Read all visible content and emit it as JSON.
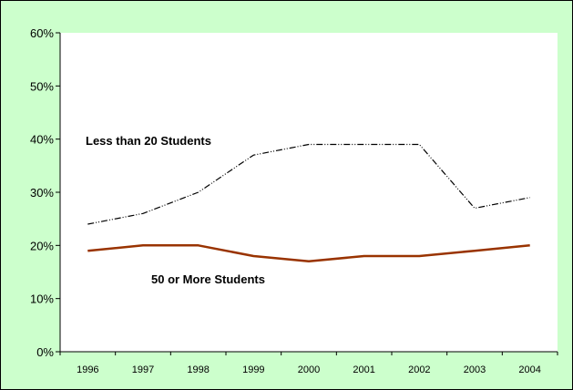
{
  "chart_data": {
    "type": "line",
    "title": "",
    "xlabel": "",
    "ylabel": "",
    "x": [
      "1996",
      "1997",
      "1998",
      "1999",
      "2000",
      "2001",
      "2002",
      "2003",
      "2004"
    ],
    "ylim": [
      0,
      60
    ],
    "y_ticks": [
      "0%",
      "10%",
      "20%",
      "30%",
      "40%",
      "50%",
      "60%"
    ],
    "y_tick_values": [
      0,
      10,
      20,
      30,
      40,
      50,
      60
    ],
    "grid": false,
    "legend": "none",
    "series": [
      {
        "name": "Less than 20 Students",
        "values": [
          24,
          26,
          30,
          37,
          39,
          39,
          39,
          27,
          29
        ],
        "color": "#000000",
        "style": "dash-dot"
      },
      {
        "name": "50 or More Students",
        "values": [
          19,
          20,
          20,
          18,
          17,
          18,
          18,
          19,
          20
        ],
        "color": "#993300",
        "style": "solid"
      }
    ]
  },
  "colors": {
    "frame_background": "#ccffcc",
    "plot_background": "#ffffff"
  }
}
